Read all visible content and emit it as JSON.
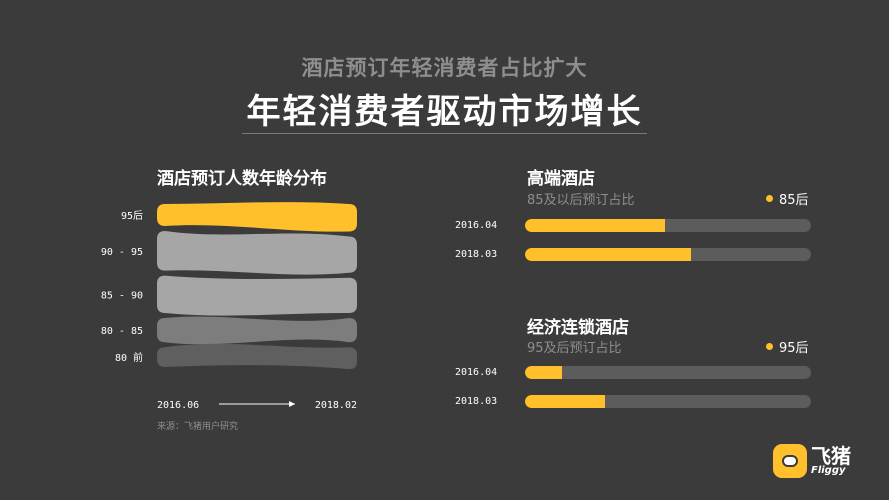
{
  "header": {
    "subtitle": "酒店预订年轻消费者占比扩大",
    "title": "年轻消费者驱动市场增长"
  },
  "left_panel": {
    "title": "酒店预订人数年龄分布",
    "source": "来源：飞猪用户研究"
  },
  "right_panel": {
    "sections": [
      {
        "title": "高端酒店",
        "subtitle": "85及以后预订占比",
        "legend": "85后"
      },
      {
        "title": "经济连锁酒店",
        "subtitle": "95及后预订占比",
        "legend": "95后"
      }
    ]
  },
  "logo": {
    "cn": "飞猪",
    "en": "Fliggy"
  },
  "colors": {
    "background": "#3b3b3b",
    "accent": "#ffc02b",
    "band_light": "#a6a6a6",
    "band_mid": "#7d7d7d",
    "band_dark": "#5f5f5f",
    "track": "#5c5c5c"
  },
  "chart_data": [
    {
      "type": "area",
      "title": "酒店预订人数年龄分布",
      "x": [
        "2016.06",
        "2018.02"
      ],
      "series": [
        {
          "name": "95后",
          "values": [
            20,
            25
          ]
        },
        {
          "name": "90 - 95",
          "values": [
            36,
            33
          ]
        },
        {
          "name": "85 - 90",
          "values": [
            34,
            32
          ]
        },
        {
          "name": "80 - 85",
          "values": [
            22,
            22
          ]
        },
        {
          "name": "80 前",
          "values": [
            18,
            20
          ]
        }
      ]
    },
    {
      "type": "bar",
      "title": "高端酒店",
      "categories": [
        "2016.04",
        "2018.03"
      ],
      "values": [
        0.49,
        0.58
      ],
      "xlim": [
        0,
        1
      ]
    },
    {
      "type": "bar",
      "title": "经济连锁酒店",
      "categories": [
        "2016.04",
        "2018.03"
      ],
      "values": [
        0.13,
        0.28
      ],
      "xlim": [
        0,
        1
      ]
    }
  ]
}
